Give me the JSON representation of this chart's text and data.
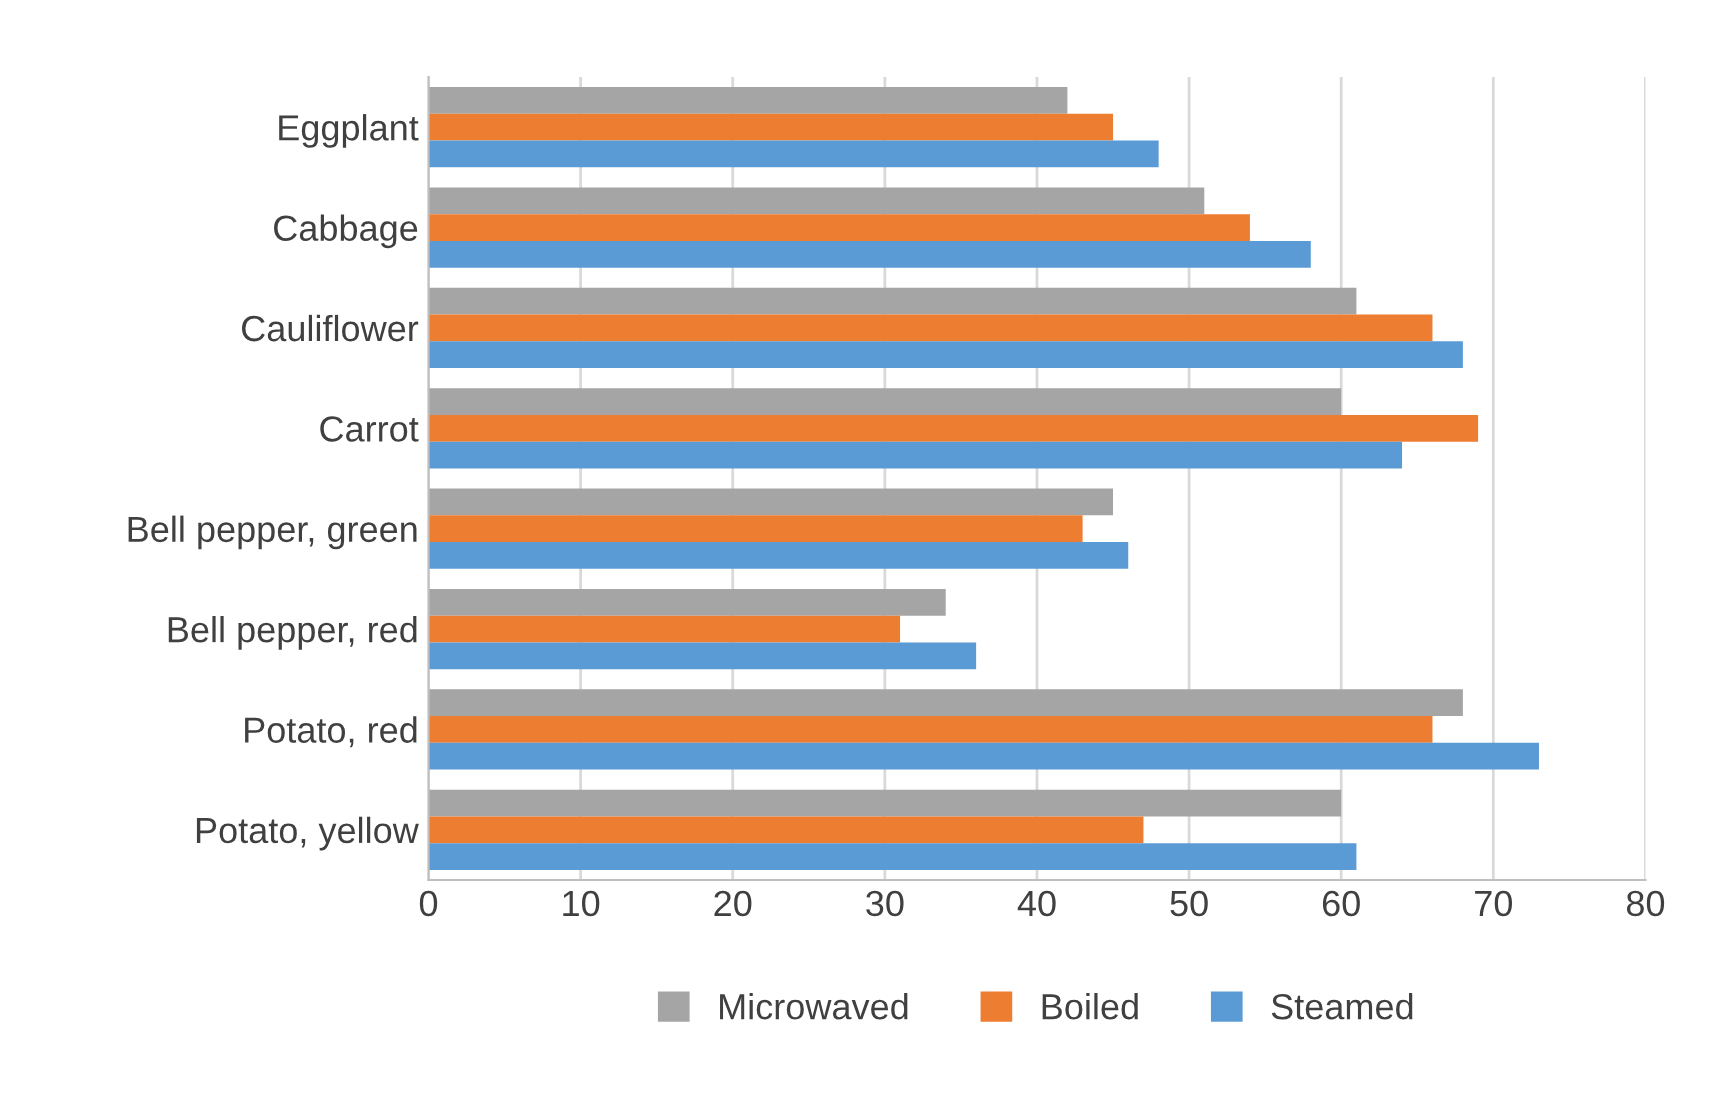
{
  "chart_data": {
    "type": "bar",
    "orientation": "horizontal",
    "categories": [
      "Eggplant",
      "Cabbage",
      "Cauliflower",
      "Carrot",
      "Bell pepper, green",
      "Bell pepper, red",
      "Potato, red",
      "Potato, yellow"
    ],
    "series": [
      {
        "name": "Microwaved",
        "color": "#a5a5a5",
        "values": [
          42,
          51,
          61,
          60,
          45,
          34,
          68,
          60
        ]
      },
      {
        "name": "Boiled",
        "color": "#ed7d31",
        "values": [
          45,
          54,
          66,
          69,
          43,
          31,
          66,
          47
        ]
      },
      {
        "name": "Steamed",
        "color": "#5b9bd5",
        "values": [
          48,
          58,
          68,
          64,
          46,
          36,
          73,
          61
        ]
      }
    ],
    "xlim": [
      0,
      80
    ],
    "xticks": [
      0,
      10,
      20,
      30,
      40,
      50,
      60,
      70,
      80
    ],
    "grid": "x",
    "legend": "bottom"
  }
}
